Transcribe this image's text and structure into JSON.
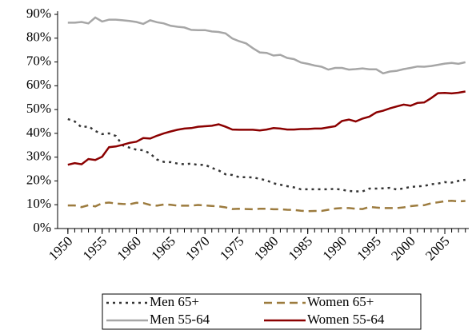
{
  "chart_data": {
    "type": "line",
    "x": [
      1950,
      1951,
      1952,
      1953,
      1954,
      1955,
      1956,
      1957,
      1958,
      1959,
      1960,
      1961,
      1962,
      1963,
      1964,
      1965,
      1966,
      1967,
      1968,
      1969,
      1970,
      1971,
      1972,
      1973,
      1974,
      1975,
      1976,
      1977,
      1978,
      1979,
      1980,
      1981,
      1982,
      1983,
      1984,
      1985,
      1986,
      1987,
      1988,
      1989,
      1990,
      1991,
      1992,
      1993,
      1994,
      1995,
      1996,
      1997,
      1998,
      1999,
      2000,
      2001,
      2002,
      2003,
      2004,
      2005,
      2006,
      2007,
      2008
    ],
    "xlim": [
      1948.5,
      2008.5
    ],
    "xticks": [
      1950,
      1955,
      1960,
      1965,
      1970,
      1975,
      1980,
      1985,
      1990,
      1995,
      2000,
      2005
    ],
    "ylim": [
      0,
      90
    ],
    "yticks": [
      {
        "value": 0,
        "label": "0%"
      },
      {
        "value": 10,
        "label": "10%"
      },
      {
        "value": 20,
        "label": "20%"
      },
      {
        "value": 30,
        "label": "30%"
      },
      {
        "value": 40,
        "label": "40%"
      },
      {
        "value": 50,
        "label": "50%"
      },
      {
        "value": 60,
        "label": "60%"
      },
      {
        "value": 70,
        "label": "70%"
      },
      {
        "value": 80,
        "label": "80%"
      },
      {
        "value": 90,
        "label": "90%"
      }
    ],
    "series": [
      {
        "name": "Men 65+",
        "color": "#333333",
        "style": "dotted",
        "values": [
          46.0,
          45.0,
          42.5,
          43.0,
          41.0,
          39.7,
          40.0,
          38.9,
          35.0,
          34.0,
          33.1,
          32.9,
          31.5,
          29.0,
          28.0,
          27.9,
          27.3,
          27.0,
          27.3,
          26.7,
          26.8,
          25.5,
          24.4,
          22.8,
          22.5,
          21.6,
          21.6,
          21.5,
          20.9,
          20.2,
          19.0,
          18.4,
          17.8,
          17.3,
          16.5,
          16.5,
          16.5,
          16.5,
          16.5,
          16.7,
          16.3,
          15.8,
          15.6,
          15.6,
          16.8,
          16.8,
          16.9,
          17.1,
          16.4,
          16.9,
          17.5,
          17.7,
          17.9,
          18.6,
          18.9,
          19.5,
          19.3,
          20.0,
          20.5
        ]
      },
      {
        "name": "Women 65+",
        "color": "#9c7b3e",
        "style": "dashed",
        "values": [
          9.7,
          9.7,
          9.0,
          9.8,
          9.3,
          10.6,
          10.9,
          10.5,
          10.3,
          10.2,
          10.8,
          10.7,
          9.9,
          9.6,
          10.1,
          10.0,
          9.6,
          9.6,
          9.6,
          9.9,
          9.7,
          9.5,
          9.3,
          8.9,
          8.2,
          8.3,
          8.2,
          8.1,
          8.3,
          8.3,
          8.1,
          8.1,
          7.9,
          7.8,
          7.5,
          7.3,
          7.4,
          7.4,
          7.9,
          8.4,
          8.6,
          8.6,
          8.3,
          8.2,
          9.1,
          8.8,
          8.6,
          8.6,
          8.6,
          8.9,
          9.4,
          9.7,
          9.8,
          10.6,
          11.0,
          11.5,
          11.7,
          11.4,
          11.6
        ]
      },
      {
        "name": "Men 55-64",
        "color": "#a6a6a6",
        "style": "solid",
        "values": [
          86.5,
          86.5,
          86.8,
          86.2,
          88.7,
          87.0,
          87.8,
          87.8,
          87.5,
          87.2,
          86.8,
          86.0,
          87.5,
          86.7,
          86.2,
          85.2,
          84.8,
          84.5,
          83.5,
          83.4,
          83.4,
          82.8,
          82.6,
          82.0,
          79.9,
          78.7,
          77.8,
          75.8,
          74.0,
          73.8,
          72.7,
          73.0,
          71.7,
          71.2,
          69.8,
          69.2,
          68.5,
          68.0,
          66.8,
          67.5,
          67.5,
          66.8,
          67.0,
          67.3,
          66.9,
          66.9,
          65.2,
          66.0,
          66.3,
          67.0,
          67.5,
          68.1,
          68.0,
          68.3,
          68.8,
          69.3,
          69.6,
          69.2,
          69.9
        ]
      },
      {
        "name": "Women 55-64",
        "color": "#8b0000",
        "style": "solid",
        "values": [
          26.8,
          27.5,
          27.0,
          29.2,
          28.8,
          30.2,
          34.2,
          34.5,
          35.2,
          36.0,
          36.5,
          38.0,
          37.8,
          39.0,
          40.0,
          40.8,
          41.5,
          42.0,
          42.2,
          42.8,
          43.0,
          43.2,
          43.8,
          42.8,
          41.6,
          41.5,
          41.5,
          41.5,
          41.2,
          41.6,
          42.2,
          42.0,
          41.6,
          41.6,
          41.8,
          41.8,
          42.0,
          42.0,
          42.5,
          43.0,
          45.2,
          45.8,
          45.0,
          46.2,
          47.0,
          48.8,
          49.5,
          50.5,
          51.3,
          52.1,
          51.6,
          52.8,
          53.0,
          54.8,
          56.9,
          57.0,
          56.8,
          57.1,
          57.6
        ]
      }
    ]
  }
}
